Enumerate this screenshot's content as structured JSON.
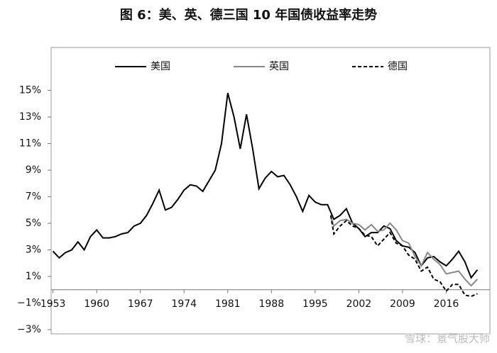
{
  "chart_data": {
    "type": "line",
    "title": "图 6：美、英、德三国 10 年国债收益率走势",
    "watermark": "雪球：景气股大师",
    "xlim": [
      1952.7,
      2023
    ],
    "ylim": [
      -3.32,
      18.23
    ],
    "xticks": [
      1953,
      1960,
      1967,
      1974,
      1981,
      1988,
      1995,
      2002,
      2009,
      2016
    ],
    "yticks": [
      {
        "value": -3,
        "label": "−3%"
      },
      {
        "value": -1,
        "label": "−1%"
      },
      {
        "value": 1,
        "label": "1%"
      },
      {
        "value": 3,
        "label": "3%"
      },
      {
        "value": 5,
        "label": "5%"
      },
      {
        "value": 7,
        "label": "7%"
      },
      {
        "value": 9,
        "label": "9%"
      },
      {
        "value": 11,
        "label": "11%"
      },
      {
        "value": 13,
        "label": "13%"
      },
      {
        "value": 15,
        "label": "15%"
      }
    ],
    "legend": "top",
    "series": [
      {
        "name": "美国",
        "color": "#000000",
        "dashed": false,
        "x": [
          1953,
          1954,
          1955,
          1956,
          1957,
          1958,
          1959,
          1960,
          1961,
          1962,
          1963,
          1964,
          1965,
          1966,
          1967,
          1968,
          1969,
          1970,
          1971,
          1972,
          1973,
          1974,
          1975,
          1976,
          1977,
          1978,
          1979,
          1980,
          1981,
          1982,
          1983,
          1984,
          1985,
          1986,
          1987,
          1988,
          1989,
          1990,
          1991,
          1992,
          1993,
          1994,
          1995,
          1996,
          1997,
          1998,
          1999,
          2000,
          2001,
          2002,
          2003,
          2004,
          2005,
          2006,
          2007,
          2008,
          2009,
          2010,
          2011,
          2012,
          2013,
          2014,
          2015,
          2016,
          2017,
          2018,
          2019,
          2020,
          2021
        ],
        "values": [
          2.9,
          2.4,
          2.8,
          3.0,
          3.6,
          3.0,
          4.0,
          4.5,
          3.9,
          3.9,
          4.0,
          4.2,
          4.3,
          4.8,
          5.0,
          5.6,
          6.5,
          7.5,
          6.0,
          6.2,
          6.8,
          7.5,
          7.9,
          7.8,
          7.4,
          8.2,
          9.0,
          11.0,
          14.8,
          13.0,
          10.6,
          13.2,
          10.6,
          7.6,
          8.4,
          8.9,
          8.5,
          8.6,
          7.9,
          7.0,
          5.9,
          7.1,
          6.6,
          6.4,
          6.4,
          5.3,
          5.6,
          6.1,
          5.0,
          4.6,
          4.0,
          4.3,
          4.3,
          4.8,
          4.6,
          3.7,
          3.3,
          3.2,
          2.8,
          1.8,
          2.4,
          2.5,
          2.1,
          1.8,
          2.3,
          2.9,
          2.1,
          0.9,
          1.5
        ]
      },
      {
        "name": "英国",
        "color": "#888888",
        "dashed": false,
        "x": [
          1997.5,
          1998,
          1999,
          2000,
          2001,
          2002,
          2003,
          2004,
          2005,
          2006,
          2007,
          2008,
          2009,
          2010,
          2011,
          2012,
          2013,
          2014,
          2015,
          2016,
          2017,
          2018,
          2019,
          2020,
          2021
        ],
        "values": [
          5.5,
          4.8,
          5.2,
          5.3,
          5.0,
          4.9,
          4.5,
          4.9,
          4.4,
          4.5,
          5.0,
          4.5,
          3.7,
          3.5,
          2.5,
          1.8,
          2.8,
          2.3,
          1.9,
          1.2,
          1.3,
          1.4,
          0.8,
          0.3,
          0.8
        ]
      },
      {
        "name": "德国",
        "color": "#000000",
        "dashed": true,
        "x": [
          1997.5,
          1998,
          1999,
          2000,
          2001,
          2002,
          2003,
          2004,
          2005,
          2006,
          2007,
          2008,
          2009,
          2010,
          2011,
          2012,
          2013,
          2014,
          2015,
          2016,
          2017,
          2018,
          2019,
          2020,
          2021
        ],
        "values": [
          5.6,
          4.2,
          4.8,
          5.2,
          4.8,
          4.6,
          4.1,
          4.0,
          3.3,
          3.8,
          4.3,
          3.5,
          3.3,
          2.6,
          2.3,
          1.4,
          1.7,
          0.8,
          0.6,
          -0.1,
          0.4,
          0.4,
          -0.4,
          -0.5,
          -0.3
        ]
      }
    ]
  }
}
